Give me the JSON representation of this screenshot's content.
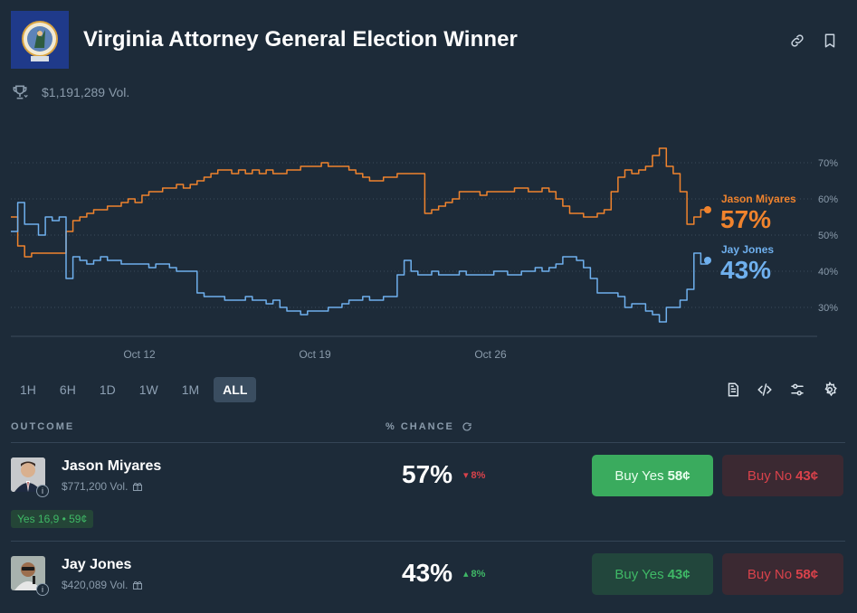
{
  "header": {
    "title": "Virginia Attorney General Election Winner",
    "volume": "$1,191,289 Vol."
  },
  "chart_data": {
    "type": "line",
    "title": "",
    "x_ticks": [
      "Oct 12",
      "Oct 19",
      "Oct 26"
    ],
    "y_ticks": [
      "70%",
      "60%",
      "50%",
      "40%",
      "30%"
    ],
    "ylim": [
      22,
      80
    ],
    "series": [
      {
        "name": "Jason Miyares",
        "color": "#f0832d",
        "current": "57%",
        "values": [
          55,
          47,
          44,
          45,
          45,
          45,
          45,
          45,
          51,
          54,
          55,
          56,
          57,
          57,
          58,
          58,
          59,
          60,
          59,
          61,
          62,
          62,
          63,
          63,
          64,
          63,
          64,
          65,
          66,
          67,
          68,
          68,
          67,
          68,
          67,
          68,
          67,
          68,
          67,
          67,
          68,
          68,
          69,
          69,
          69,
          70,
          69,
          69,
          69,
          68,
          67,
          66,
          65,
          65,
          66,
          66,
          67,
          67,
          67,
          67,
          56,
          57,
          58,
          59,
          60,
          62,
          62,
          62,
          61,
          62,
          62,
          62,
          62,
          63,
          63,
          62,
          62,
          63,
          62,
          60,
          58,
          56,
          56,
          55,
          55,
          56,
          57,
          62,
          66,
          68,
          67,
          68,
          69,
          72,
          74,
          69,
          67,
          62,
          53,
          55,
          57,
          57
        ]
      },
      {
        "name": "Jay Jones",
        "color": "#6fb0ee",
        "current": "43%",
        "values": [
          51,
          59,
          53,
          53,
          50,
          55,
          54,
          55,
          38,
          44,
          43,
          42,
          43,
          44,
          43,
          43,
          42,
          42,
          42,
          42,
          41,
          42,
          42,
          41,
          40,
          40,
          40,
          34,
          33,
          33,
          33,
          32,
          32,
          32,
          33,
          32,
          32,
          31,
          32,
          30,
          29,
          29,
          28,
          29,
          29,
          29,
          30,
          30,
          31,
          32,
          32,
          33,
          32,
          32,
          33,
          33,
          39,
          43,
          40,
          39,
          39,
          40,
          39,
          39,
          39,
          40,
          39,
          39,
          39,
          39,
          40,
          40,
          39,
          39,
          40,
          40,
          41,
          40,
          41,
          42,
          44,
          44,
          43,
          41,
          38,
          34,
          34,
          34,
          33,
          30,
          31,
          31,
          29,
          28,
          26,
          30,
          30,
          32,
          35,
          45,
          42,
          43
        ]
      }
    ]
  },
  "timeframes": [
    "1H",
    "6H",
    "1D",
    "1W",
    "1M",
    "ALL"
  ],
  "table": {
    "col_outcome": "OUTCOME",
    "col_chance": "% CHANCE",
    "rows": [
      {
        "name": "Jason Miyares",
        "volume": "$771,200 Vol.",
        "chance": "57%",
        "change": "8%",
        "change_dir": "down",
        "yes_label": "Buy Yes",
        "yes_price": "58¢",
        "no_label": "Buy No",
        "no_price": "43¢",
        "tag": "Yes 16,9 • 59¢"
      },
      {
        "name": "Jay Jones",
        "volume": "$420,089 Vol.",
        "chance": "43%",
        "change": "8%",
        "change_dir": "up",
        "yes_label": "Buy Yes",
        "yes_price": "43¢",
        "no_label": "Buy No",
        "no_price": "58¢"
      }
    ]
  },
  "colors": {
    "orange": "#f0832d",
    "blue": "#6fb0ee",
    "green": "#3fb866",
    "red": "#d9424b"
  }
}
